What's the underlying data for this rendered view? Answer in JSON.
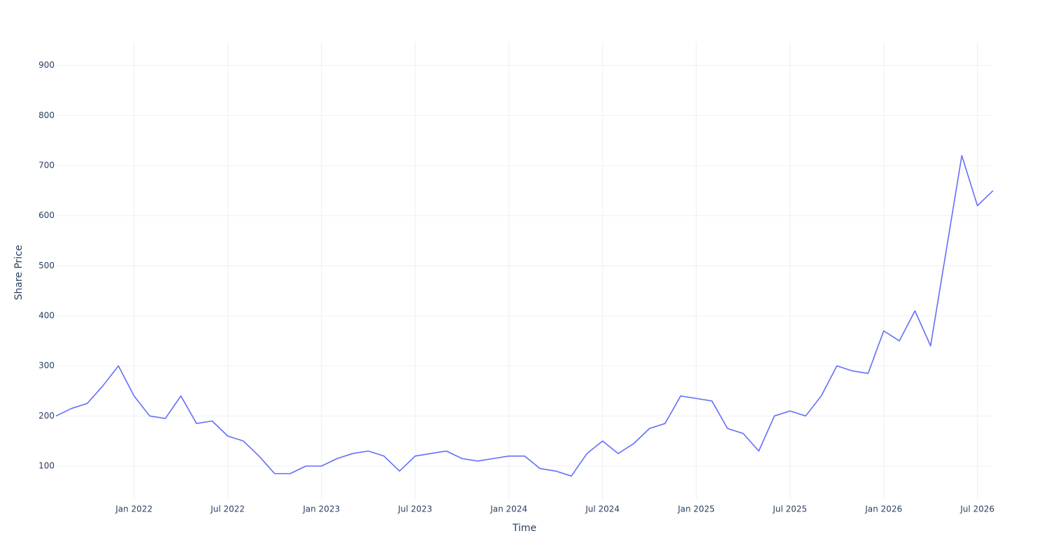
{
  "chart_data": {
    "type": "line",
    "x_label": "Time",
    "y_label": "Share Price",
    "x": [
      "2021-08",
      "2021-09",
      "2021-10",
      "2021-11",
      "2021-12",
      "2022-01",
      "2022-02",
      "2022-03",
      "2022-04",
      "2022-05",
      "2022-06",
      "2022-07",
      "2022-08",
      "2022-09",
      "2022-10",
      "2022-11",
      "2022-12",
      "2023-01",
      "2023-02",
      "2023-03",
      "2023-04",
      "2023-05",
      "2023-06",
      "2023-07",
      "2023-08",
      "2023-09",
      "2023-10",
      "2023-11",
      "2023-12",
      "2024-01",
      "2024-02",
      "2024-03",
      "2024-04",
      "2024-05",
      "2024-06",
      "2024-07",
      "2024-08",
      "2024-09",
      "2024-10",
      "2024-11",
      "2024-12",
      "2025-01",
      "2025-02",
      "2025-03",
      "2025-04",
      "2025-05",
      "2025-06",
      "2025-07",
      "2025-08",
      "2025-09",
      "2025-10",
      "2025-11",
      "2025-12",
      "2026-01",
      "2026-02",
      "2026-03",
      "2026-04",
      "2026-05",
      "2026-06",
      "2026-07",
      "2026-08"
    ],
    "values": [
      200,
      215,
      225,
      260,
      300,
      240,
      200,
      195,
      240,
      185,
      190,
      160,
      150,
      120,
      85,
      85,
      100,
      100,
      115,
      125,
      130,
      120,
      90,
      120,
      125,
      130,
      115,
      110,
      115,
      120,
      120,
      95,
      90,
      80,
      125,
      150,
      125,
      145,
      175,
      185,
      240,
      235,
      230,
      175,
      165,
      130,
      200,
      210,
      200,
      240,
      300,
      290,
      285,
      370,
      350,
      410,
      340,
      530,
      720,
      620,
      650
    ],
    "color": "#636efa",
    "xlim": [
      "2021-08",
      "2026-08"
    ],
    "xticks": [
      {
        "value": "2022-01",
        "label": "Jan 2022"
      },
      {
        "value": "2022-07",
        "label": "Jul 2022"
      },
      {
        "value": "2023-01",
        "label": "Jan 2023"
      },
      {
        "value": "2023-07",
        "label": "Jul 2023"
      },
      {
        "value": "2024-01",
        "label": "Jan 2024"
      },
      {
        "value": "2024-07",
        "label": "Jul 2024"
      },
      {
        "value": "2025-01",
        "label": "Jan 2025"
      },
      {
        "value": "2025-07",
        "label": "Jul 2025"
      },
      {
        "value": "2026-01",
        "label": "Jan 2026"
      },
      {
        "value": "2026-07",
        "label": "Jul 2026"
      }
    ],
    "ylim": [
      33,
      947
    ],
    "yticks": [
      100,
      200,
      300,
      400,
      500,
      600,
      700,
      800,
      900
    ],
    "grid": true
  }
}
